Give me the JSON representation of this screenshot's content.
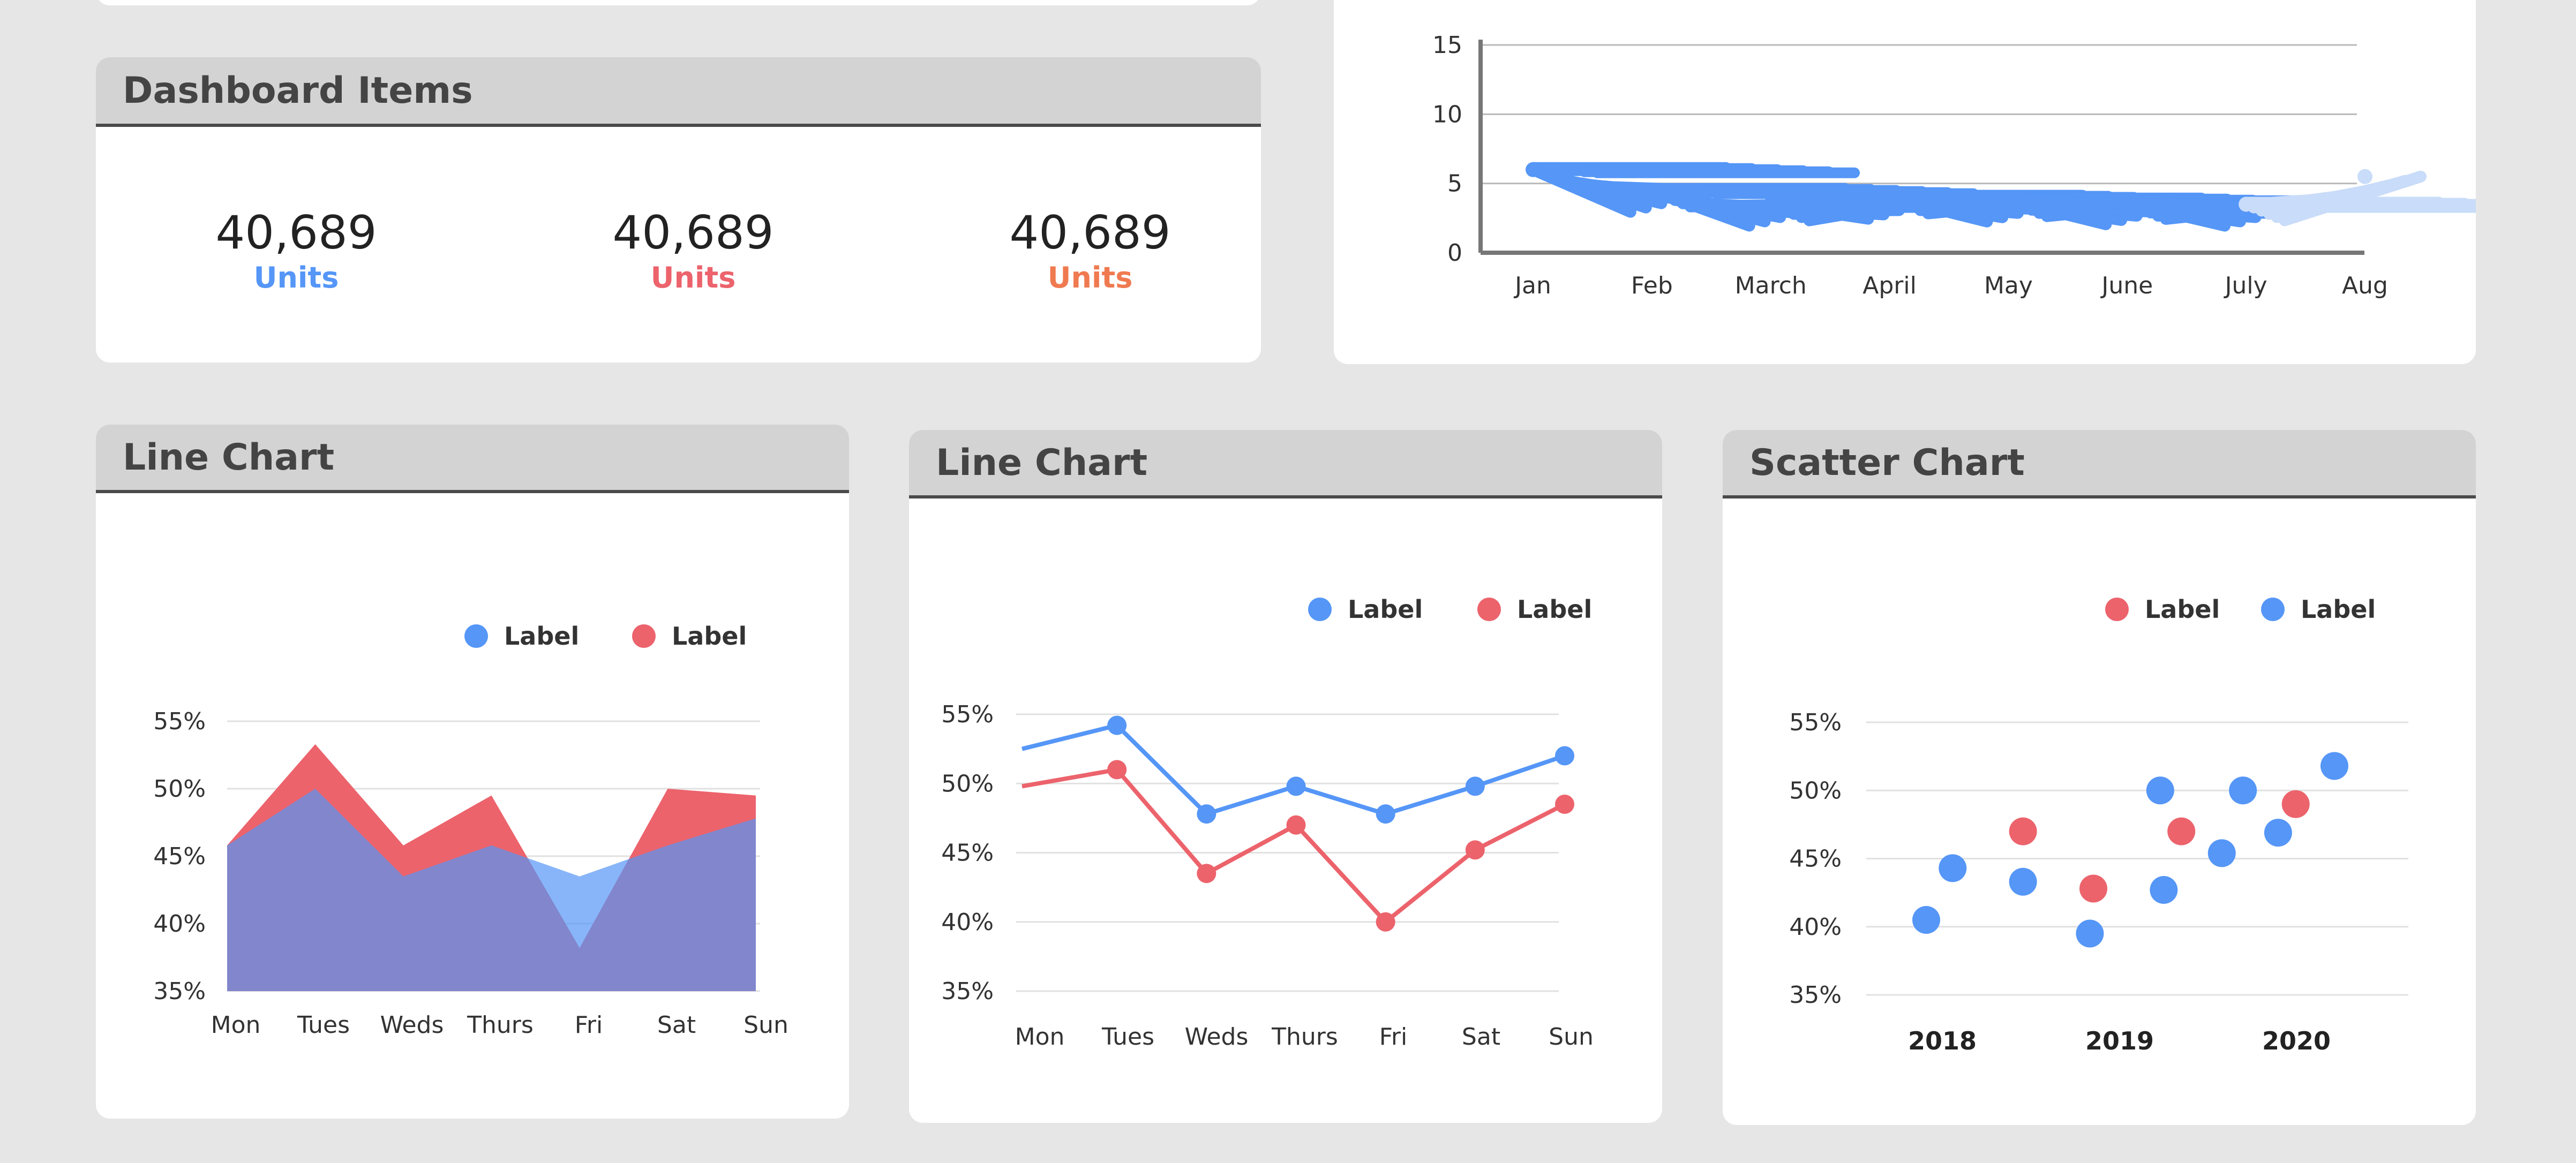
{
  "colors": {
    "blue": "#5596f7",
    "red": "#ec636c",
    "orange": "#f07a50",
    "purple": "#8488d6",
    "light_blue": "#a9c7f7",
    "header_bg": "#d3d3d3"
  },
  "dashboard": {
    "title": "Dashboard Items",
    "kpis": [
      {
        "value": "40,689",
        "unit": "Units",
        "color": "#5596f7"
      },
      {
        "value": "40,689",
        "unit": "Units",
        "color": "#ec636c"
      },
      {
        "value": "40,689",
        "unit": "Units",
        "color": "#f07a50"
      }
    ]
  },
  "cards": {
    "area": {
      "title": "Line Chart"
    },
    "line": {
      "title": "Line Chart"
    },
    "scatter": {
      "title": "Scatter Chart"
    }
  },
  "chart_data": [
    {
      "id": "top_right",
      "type": "line",
      "title": "",
      "categories": [
        "Jan",
        "Feb",
        "March",
        "April",
        "May",
        "June",
        "July",
        "Aug"
      ],
      "yticks": [
        "0",
        "5",
        "10",
        "15"
      ],
      "ylim": [
        0,
        15
      ],
      "grid": true,
      "series": [
        {
          "values": [
            6,
            4.5,
            3.5,
            4,
            3.8,
            3.6,
            3.5,
            5.5
          ],
          "color": "#5596f7"
        }
      ]
    },
    {
      "id": "area",
      "type": "area",
      "title": "",
      "categories": [
        "Mon",
        "Tues",
        "Weds",
        "Thurs",
        "Fri",
        "Sat",
        "Sun"
      ],
      "yticks": [
        "35%",
        "40%",
        "45%",
        "50%",
        "55%"
      ],
      "ylim": [
        35,
        55
      ],
      "grid": true,
      "legend": [
        "Label",
        "Label"
      ],
      "legend_position": "top-right",
      "series": [
        {
          "values": [
            45.8,
            53.3,
            45.8,
            49.5,
            38.2,
            50.0,
            49.5
          ],
          "color": "#ec636c"
        },
        {
          "values": [
            45.8,
            50.0,
            43.5,
            45.8,
            43.5,
            45.8,
            47.8
          ],
          "color": "#5596f7"
        }
      ]
    },
    {
      "id": "line",
      "type": "line",
      "title": "",
      "categories": [
        "Mon",
        "Tues",
        "Weds",
        "Thurs",
        "Fri",
        "Sat",
        "Sun"
      ],
      "yticks": [
        "35%",
        "40%",
        "45%",
        "50%",
        "55%"
      ],
      "ylim": [
        35,
        55
      ],
      "grid": true,
      "legend": [
        "Label",
        "Label"
      ],
      "legend_position": "top-right",
      "series": [
        {
          "values": [
            52.5,
            54.2,
            47.8,
            49.8,
            47.8,
            49.8,
            52.0
          ],
          "color": "#5596f7"
        },
        {
          "values": [
            49.8,
            51.0,
            43.5,
            47.0,
            40.0,
            45.2,
            48.5
          ],
          "color": "#ec636c"
        }
      ]
    },
    {
      "id": "scatter",
      "type": "scatter",
      "title": "",
      "categories": [
        "2018",
        "2019",
        "2020"
      ],
      "yticks": [
        "35%",
        "40%",
        "45%",
        "50%",
        "55%"
      ],
      "ylim": [
        35,
        55
      ],
      "grid": true,
      "legend": [
        "Label",
        "Label"
      ],
      "legend_position": "top-right",
      "series": [
        {
          "color": "#ec636c",
          "points": [
            [
              2018.45,
              47.0
            ],
            [
              2018.85,
              42.8
            ],
            [
              2019.35,
              47.0
            ],
            [
              2020.0,
              49.0
            ]
          ]
        },
        {
          "color": "#5596f7",
          "points": [
            [
              2017.9,
              40.5
            ],
            [
              2018.05,
              44.3
            ],
            [
              2018.45,
              43.3
            ],
            [
              2018.83,
              39.5
            ],
            [
              2019.23,
              50.0
            ],
            [
              2019.25,
              42.7
            ],
            [
              2019.58,
              45.4
            ],
            [
              2019.7,
              50.0
            ],
            [
              2019.9,
              46.9
            ],
            [
              2020.22,
              51.8
            ]
          ]
        }
      ]
    }
  ]
}
